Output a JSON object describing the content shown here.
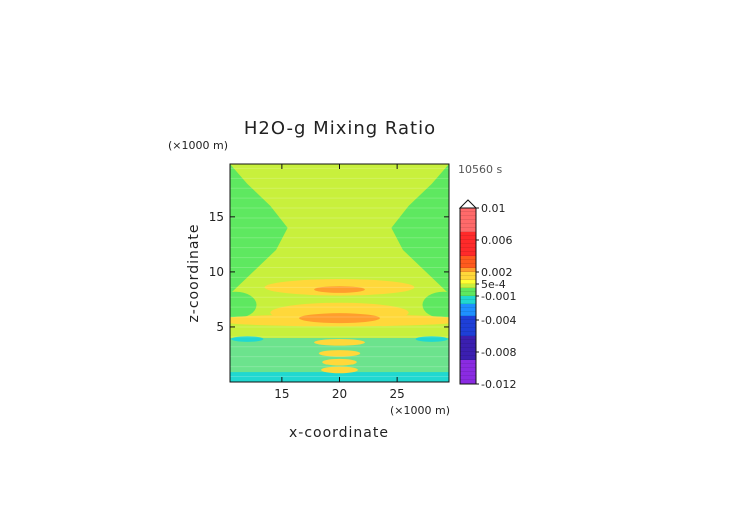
{
  "chart_data": {
    "type": "heatmap",
    "title": "H2O-g Mixing Ratio",
    "time_label": "10560 s",
    "xlabel": "x-coordinate",
    "ylabel": "z-coordinate",
    "x_unit": "(×1000 m)",
    "y_unit": "(×1000 m)",
    "xlim": [
      10.5,
      29.5
    ],
    "ylim": [
      0,
      19.8
    ],
    "x_ticks": [
      15,
      20,
      25
    ],
    "y_ticks": [
      5,
      10,
      15
    ],
    "colorbar": {
      "min": -0.012,
      "max": 0.01,
      "labels": [
        {
          "value": 0.01,
          "text": "0.01"
        },
        {
          "value": 0.006,
          "text": "0.006"
        },
        {
          "value": 0.002,
          "text": "0.002"
        },
        {
          "value": 0.0005,
          "text": "5e-4"
        },
        {
          "value": -0.001,
          "text": "-0.001"
        },
        {
          "value": -0.004,
          "text": "-0.004"
        },
        {
          "value": -0.008,
          "text": "-0.008"
        },
        {
          "value": -0.012,
          "text": "-0.012"
        }
      ],
      "stops": [
        {
          "value": -0.012,
          "color": "#8a2be2"
        },
        {
          "value": -0.009,
          "color": "#3b1fb0"
        },
        {
          "value": -0.006,
          "color": "#1e3fd8"
        },
        {
          "value": -0.0035,
          "color": "#1e90ff"
        },
        {
          "value": -0.0018,
          "color": "#20d8d0"
        },
        {
          "value": -0.0008,
          "color": "#5ee860"
        },
        {
          "value": -0.0001,
          "color": "#c8f03c"
        },
        {
          "value": 0.0004,
          "color": "#ffff33"
        },
        {
          "value": 0.0011,
          "color": "#ffd83a"
        },
        {
          "value": 0.0018,
          "color": "#ff9e2c"
        },
        {
          "value": 0.0024,
          "color": "#ff5a1e"
        },
        {
          "value": 0.004,
          "color": "#ff2a2a"
        },
        {
          "value": 0.007,
          "color": "#ff6a6a"
        },
        {
          "value": 0.01,
          "color": "#ffb8c0"
        }
      ]
    },
    "regions": [
      {
        "label": "background (upper domain)",
        "value": -0.0002
      },
      {
        "label": "central column",
        "value": 0.0003
      },
      {
        "label": "anvil layer z~8.5",
        "value": 0.0014
      },
      {
        "label": "layer z~5.5",
        "value": 0.0017
      },
      {
        "label": "core z~5.6-6",
        "value": 0.0022
      },
      {
        "label": "lower column cells z~1-3",
        "value": 0.0016
      },
      {
        "label": "near-surface layer",
        "value": -0.001
      },
      {
        "label": "surface strip",
        "value": -0.0015
      }
    ]
  }
}
